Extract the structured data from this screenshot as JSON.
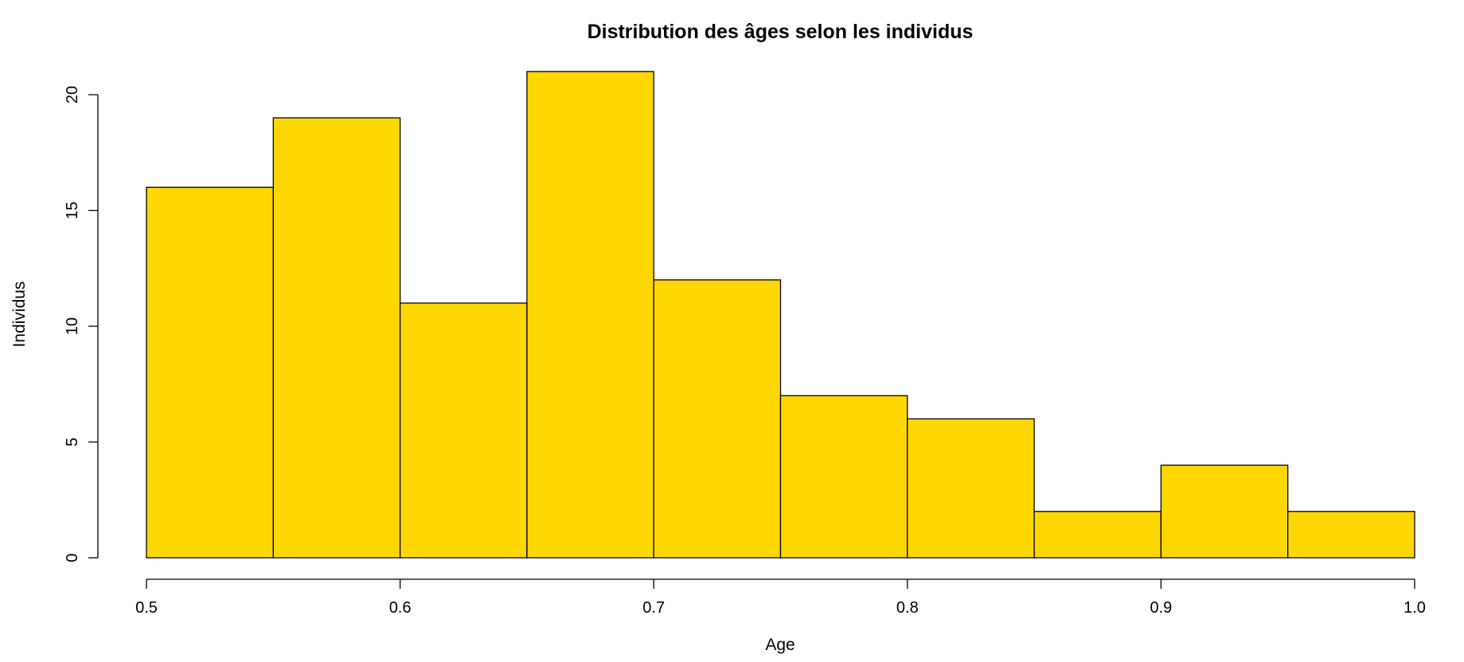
{
  "chart_data": {
    "type": "histogram",
    "title": "Distribution des âges selon les individus",
    "xlabel": "Age",
    "ylabel": "Individus",
    "bins": [
      {
        "start": 0.5,
        "end": 0.55,
        "count": 16
      },
      {
        "start": 0.55,
        "end": 0.6,
        "count": 19
      },
      {
        "start": 0.6,
        "end": 0.65,
        "count": 11
      },
      {
        "start": 0.65,
        "end": 0.7,
        "count": 21
      },
      {
        "start": 0.7,
        "end": 0.75,
        "count": 12
      },
      {
        "start": 0.75,
        "end": 0.8,
        "count": 7
      },
      {
        "start": 0.8,
        "end": 0.85,
        "count": 6
      },
      {
        "start": 0.85,
        "end": 0.9,
        "count": 2
      },
      {
        "start": 0.9,
        "end": 0.95,
        "count": 4
      },
      {
        "start": 0.95,
        "end": 1.0,
        "count": 2
      }
    ],
    "xlim": [
      0.5,
      1.0
    ],
    "ylim": [
      0,
      21
    ],
    "x_ticks": [
      "0.5",
      "0.6",
      "0.7",
      "0.8",
      "0.9",
      "1.0"
    ],
    "y_ticks": [
      "0",
      "5",
      "10",
      "15",
      "20"
    ],
    "bar_color": "#FFD700",
    "bar_border_color": "#000000",
    "grid": false,
    "legend": "none"
  }
}
